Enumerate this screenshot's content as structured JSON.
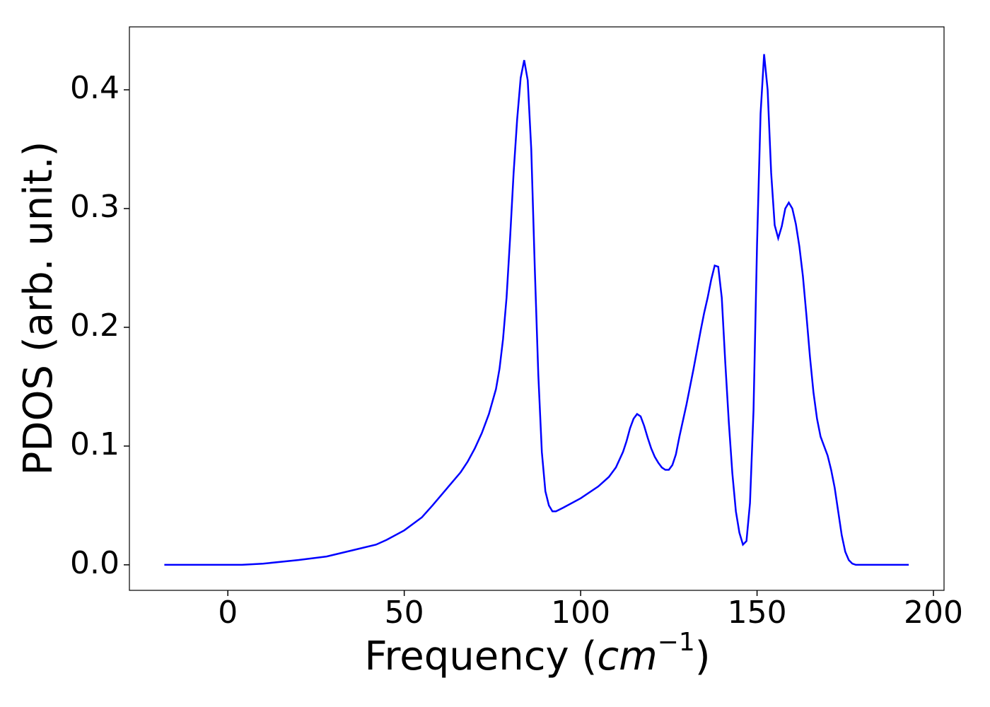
{
  "chart_data": {
    "type": "line",
    "xlabel": [
      "Frequency (",
      "cm",
      "−1",
      ")"
    ],
    "ylabel": "PDOS (arb. unit.)",
    "xlim": [
      -27.9,
      203.0
    ],
    "ylim": [
      -0.0215,
      0.453
    ],
    "xticks": [
      0,
      50,
      100,
      150,
      200
    ],
    "yticks": [
      {
        "value": 0,
        "label": "0.0"
      },
      0.1,
      0.2,
      0.3,
      0.4
    ],
    "grid": false,
    "x": [
      -18,
      4,
      10,
      20,
      28,
      35,
      42,
      45,
      50,
      55,
      58,
      62,
      66,
      68,
      70,
      72,
      74,
      76,
      77,
      78,
      79,
      80,
      81,
      82,
      83,
      84,
      85,
      86,
      87,
      88,
      89,
      90,
      91,
      92,
      93,
      95,
      100,
      105,
      108,
      110,
      112,
      113,
      114,
      115,
      116,
      117,
      118,
      119,
      120,
      121,
      122,
      123,
      124,
      125,
      126,
      127,
      128,
      130,
      132,
      134,
      135,
      136,
      137,
      138,
      139,
      140,
      141,
      142,
      143,
      144,
      145,
      146,
      147,
      148,
      149,
      150,
      151,
      152,
      153,
      154,
      155,
      156,
      157,
      158,
      159,
      160,
      161,
      162,
      163,
      164,
      165,
      166,
      167,
      168,
      170,
      171,
      172,
      173,
      174,
      175,
      176,
      177,
      178,
      193
    ],
    "series": [
      {
        "name": "PDOS",
        "color": "#0000ff",
        "values": [
          0,
          0,
          0.001,
          0.004,
          0.007,
          0.012,
          0.017,
          0.021,
          0.029,
          0.04,
          0.05,
          0.064,
          0.078,
          0.087,
          0.098,
          0.111,
          0.127,
          0.148,
          0.165,
          0.19,
          0.225,
          0.275,
          0.33,
          0.375,
          0.41,
          0.425,
          0.408,
          0.35,
          0.25,
          0.16,
          0.095,
          0.062,
          0.05,
          0.045,
          0.045,
          0.048,
          0.056,
          0.066,
          0.074,
          0.082,
          0.095,
          0.104,
          0.115,
          0.123,
          0.127,
          0.125,
          0.117,
          0.107,
          0.098,
          0.091,
          0.086,
          0.082,
          0.08,
          0.08,
          0.084,
          0.093,
          0.108,
          0.135,
          0.165,
          0.197,
          0.212,
          0.225,
          0.24,
          0.252,
          0.251,
          0.225,
          0.17,
          0.12,
          0.077,
          0.045,
          0.027,
          0.017,
          0.02,
          0.052,
          0.13,
          0.27,
          0.38,
          0.43,
          0.4,
          0.33,
          0.286,
          0.275,
          0.285,
          0.3,
          0.305,
          0.3,
          0.287,
          0.268,
          0.243,
          0.21,
          0.175,
          0.145,
          0.123,
          0.108,
          0.092,
          0.08,
          0.065,
          0.045,
          0.025,
          0.011,
          0.004,
          0.001,
          0,
          0
        ]
      }
    ]
  }
}
